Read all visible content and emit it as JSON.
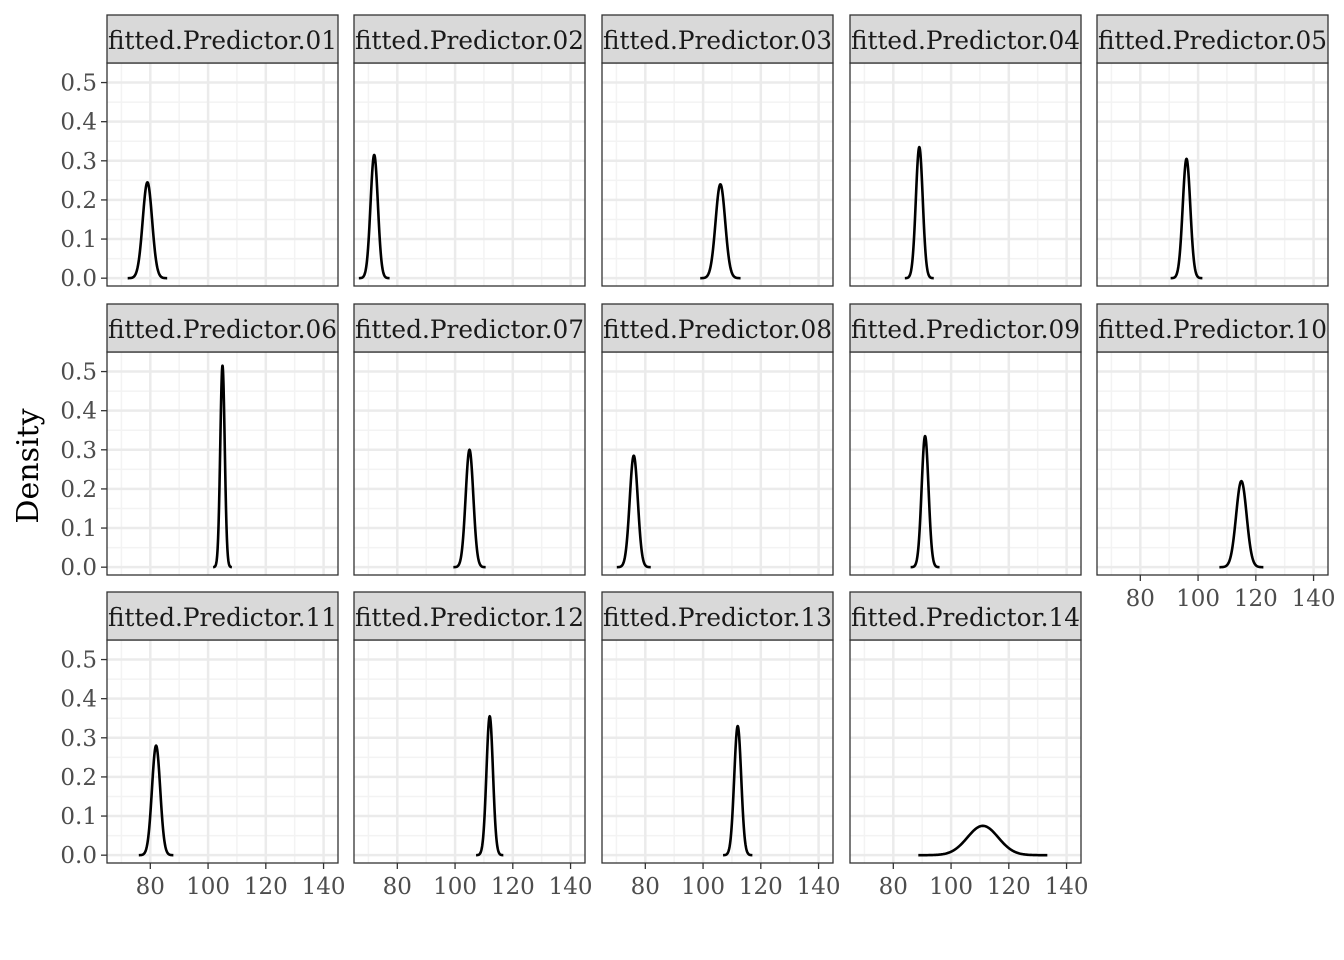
{
  "chart_data": {
    "type": "line",
    "kind": "faceted density",
    "ylabel": "Density",
    "xlabel": "",
    "xlim": [
      65,
      145
    ],
    "ylim": [
      -0.02,
      0.55
    ],
    "x_ticks": [
      80,
      100,
      120,
      140
    ],
    "y_ticks": [
      0.0,
      0.1,
      0.2,
      0.3,
      0.4,
      0.5
    ],
    "y_tick_labels": [
      "0.0",
      "0.1",
      "0.2",
      "0.3",
      "0.4",
      "0.5"
    ],
    "grid": true,
    "facet_layout": {
      "rows": 3,
      "cols": 5
    },
    "colors": {
      "line": "#000000",
      "strip": "#d9d9d9",
      "grid_major": "#ebebeb",
      "grid_minor": "#f3f3f3",
      "border": "#333333",
      "tick_text": "#4d4d4d"
    },
    "panels": [
      {
        "label": "fitted.Predictor.01",
        "mean": 79,
        "peak": 0.245
      },
      {
        "label": "fitted.Predictor.02",
        "mean": 72,
        "peak": 0.315
      },
      {
        "label": "fitted.Predictor.03",
        "mean": 106,
        "peak": 0.24
      },
      {
        "label": "fitted.Predictor.04",
        "mean": 89,
        "peak": 0.335
      },
      {
        "label": "fitted.Predictor.05",
        "mean": 96,
        "peak": 0.305
      },
      {
        "label": "fitted.Predictor.06",
        "mean": 105,
        "peak": 0.515
      },
      {
        "label": "fitted.Predictor.07",
        "mean": 105,
        "peak": 0.3
      },
      {
        "label": "fitted.Predictor.08",
        "mean": 76,
        "peak": 0.285
      },
      {
        "label": "fitted.Predictor.09",
        "mean": 91,
        "peak": 0.335
      },
      {
        "label": "fitted.Predictor.10",
        "mean": 115,
        "peak": 0.22
      },
      {
        "label": "fitted.Predictor.11",
        "mean": 82,
        "peak": 0.28
      },
      {
        "label": "fitted.Predictor.12",
        "mean": 112,
        "peak": 0.355
      },
      {
        "label": "fitted.Predictor.13",
        "mean": 112,
        "peak": 0.33
      },
      {
        "label": "fitted.Predictor.14",
        "mean": 111,
        "peak": 0.075
      }
    ]
  }
}
